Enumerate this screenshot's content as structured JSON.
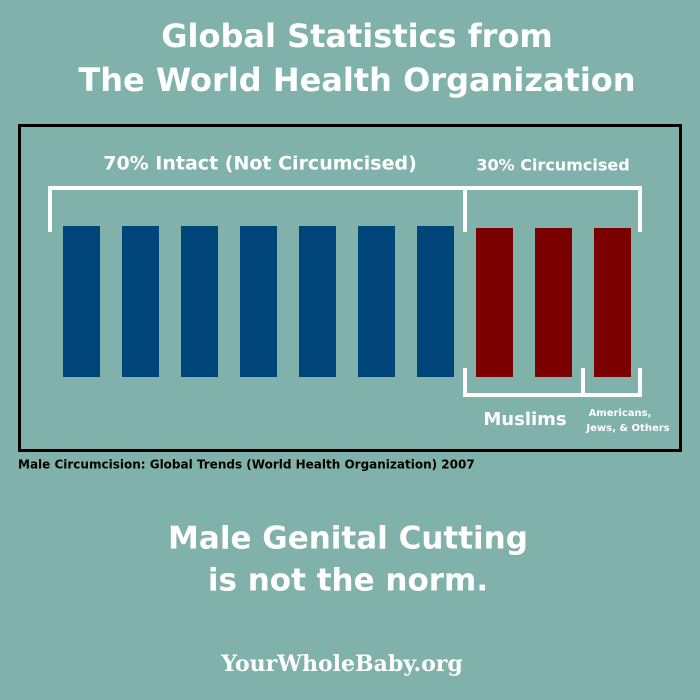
{
  "header": {
    "title_lines": [
      "Global Statistics from",
      "The World Health Organization"
    ]
  },
  "graphic": {
    "intact_label": "70% Intact (Not Circumcised)",
    "circumcised_label": "30% Circumcised",
    "group_labels": {
      "muslims": "Muslims",
      "others_lines": [
        "Americans,",
        "Jews, & Others"
      ]
    },
    "source": "Male Circumcision: Global Trends (World Health Organization) 2007"
  },
  "message_lines": [
    "Male Genital Cutting",
    "is not the norm."
  ],
  "footer": {
    "site": "YourWholeBaby.org"
  }
}
